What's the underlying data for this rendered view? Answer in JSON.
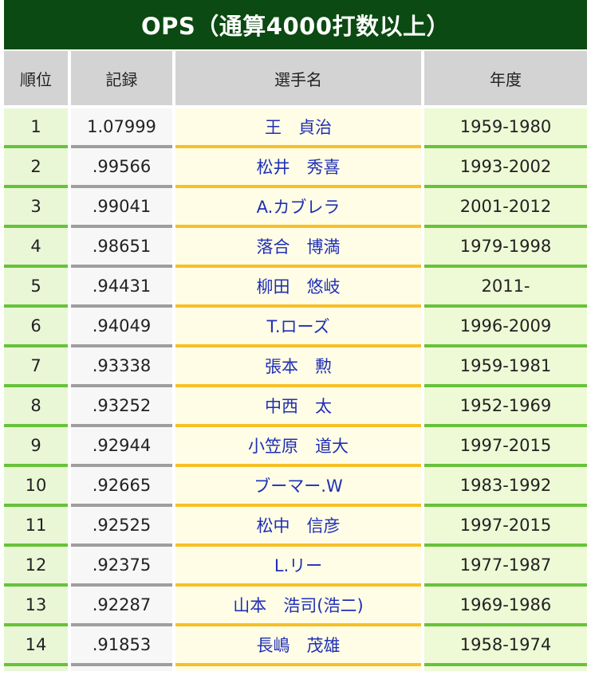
{
  "title": "OPS（通算4000打数以上）",
  "headers": {
    "rank": "順位",
    "record": "記録",
    "player": "選手名",
    "years": "年度"
  },
  "rows": [
    {
      "rank": "1",
      "record": "1.07999",
      "player": "王　貞治",
      "years": "1959-1980"
    },
    {
      "rank": "2",
      "record": ".99566",
      "player": "松井　秀喜",
      "years": "1993-2002"
    },
    {
      "rank": "3",
      "record": ".99041",
      "player": "A.カブレラ",
      "years": "2001-2012"
    },
    {
      "rank": "4",
      "record": ".98651",
      "player": "落合　博満",
      "years": "1979-1998"
    },
    {
      "rank": "5",
      "record": ".94431",
      "player": "柳田　悠岐",
      "years": "2011-"
    },
    {
      "rank": "6",
      "record": ".94049",
      "player": "T.ローズ",
      "years": "1996-2009"
    },
    {
      "rank": "7",
      "record": ".93338",
      "player": "張本　勲",
      "years": "1959-1981"
    },
    {
      "rank": "8",
      "record": ".93252",
      "player": "中西　太",
      "years": "1952-1969"
    },
    {
      "rank": "9",
      "record": ".92944",
      "player": "小笠原　道大",
      "years": "1997-2015"
    },
    {
      "rank": "10",
      "record": ".92665",
      "player": "ブーマー.W",
      "years": "1983-1992"
    },
    {
      "rank": "11",
      "record": ".92525",
      "player": "松中　信彦",
      "years": "1997-2015"
    },
    {
      "rank": "12",
      "record": ".92375",
      "player": "L.リー",
      "years": "1977-1987"
    },
    {
      "rank": "13",
      "record": ".92287",
      "player": "山本　浩司(浩二)",
      "years": "1969-1986"
    },
    {
      "rank": "14",
      "record": ".91853",
      "player": "長嶋　茂雄",
      "years": "1958-1974"
    }
  ],
  "colors": {
    "title_bg": "#0b4a12",
    "header_bg": "#d3d3d3",
    "rank_bg": "#e9f7d7",
    "record_bg": "#f7f7f7",
    "player_bg": "#fffde6",
    "years_bg": "#eef9d6",
    "player_link": "#1f2fb5",
    "green_rule": "#67c23a",
    "gray_rule": "#9e9e9e",
    "yellow_rule": "#f6c026"
  }
}
